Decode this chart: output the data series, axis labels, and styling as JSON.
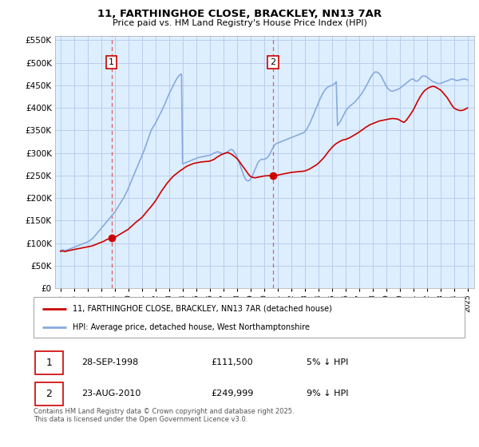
{
  "title": "11, FARTHINGHOE CLOSE, BRACKLEY, NN13 7AR",
  "subtitle": "Price paid vs. HM Land Registry's House Price Index (HPI)",
  "legend_label_red": "11, FARTHINGHOE CLOSE, BRACKLEY, NN13 7AR (detached house)",
  "legend_label_blue": "HPI: Average price, detached house, West Northamptonshire",
  "annotation1_date": "28-SEP-1998",
  "annotation1_price": "£111,500",
  "annotation1_hpi": "5% ↓ HPI",
  "annotation2_date": "23-AUG-2010",
  "annotation2_price": "£249,999",
  "annotation2_hpi": "9% ↓ HPI",
  "footer": "Contains HM Land Registry data © Crown copyright and database right 2025.\nThis data is licensed under the Open Government Licence v3.0.",
  "sale1_year": 1998.75,
  "sale1_value": 111500,
  "sale2_year": 2010.65,
  "sale2_value": 249999,
  "red_color": "#cc0000",
  "blue_color": "#88aadd",
  "dashed_color": "#dd4444",
  "chart_bg": "#ddeeff",
  "grid_color": "#bbccee",
  "ylim_min": 0,
  "ylim_max": 560000,
  "xlim_min": 1994.6,
  "xlim_max": 2025.5,
  "red_x": [
    1995.0,
    1995.08,
    1995.17,
    1995.25,
    1995.33,
    1995.42,
    1995.5,
    1995.58,
    1995.67,
    1995.75,
    1995.83,
    1995.92,
    1996.0,
    1996.08,
    1996.17,
    1996.25,
    1996.33,
    1996.42,
    1996.5,
    1996.58,
    1996.67,
    1996.75,
    1996.83,
    1996.92,
    1997.0,
    1997.08,
    1997.17,
    1997.25,
    1997.33,
    1997.42,
    1997.5,
    1997.58,
    1997.67,
    1997.75,
    1997.83,
    1997.92,
    1998.0,
    1998.08,
    1998.17,
    1998.25,
    1998.33,
    1998.42,
    1998.5,
    1998.58,
    1998.67,
    1998.75,
    1999.0,
    1999.17,
    1999.33,
    1999.5,
    1999.67,
    1999.83,
    2000.0,
    2000.17,
    2000.33,
    2000.5,
    2000.67,
    2000.83,
    2001.0,
    2001.17,
    2001.33,
    2001.5,
    2001.67,
    2001.83,
    2002.0,
    2002.17,
    2002.33,
    2002.5,
    2002.67,
    2002.83,
    2003.0,
    2003.17,
    2003.33,
    2003.5,
    2003.67,
    2003.83,
    2004.0,
    2004.17,
    2004.33,
    2004.5,
    2004.67,
    2004.83,
    2005.0,
    2005.17,
    2005.33,
    2005.5,
    2005.67,
    2005.83,
    2006.0,
    2006.17,
    2006.33,
    2006.5,
    2006.67,
    2006.83,
    2007.0,
    2007.17,
    2007.33,
    2007.5,
    2007.67,
    2007.83,
    2008.0,
    2008.17,
    2008.33,
    2008.5,
    2008.67,
    2008.83,
    2009.0,
    2009.17,
    2009.33,
    2009.5,
    2009.67,
    2009.83,
    2010.0,
    2010.17,
    2010.33,
    2010.5,
    2010.65,
    2011.0,
    2011.17,
    2011.33,
    2011.5,
    2011.67,
    2011.83,
    2012.0,
    2012.17,
    2012.33,
    2012.5,
    2012.67,
    2012.83,
    2013.0,
    2013.17,
    2013.33,
    2013.5,
    2013.67,
    2013.83,
    2014.0,
    2014.17,
    2014.33,
    2014.5,
    2014.67,
    2014.83,
    2015.0,
    2015.17,
    2015.33,
    2015.5,
    2015.67,
    2015.83,
    2016.0,
    2016.17,
    2016.33,
    2016.5,
    2016.67,
    2016.83,
    2017.0,
    2017.17,
    2017.33,
    2017.5,
    2017.67,
    2017.83,
    2018.0,
    2018.17,
    2018.33,
    2018.5,
    2018.67,
    2018.83,
    2019.0,
    2019.17,
    2019.33,
    2019.5,
    2019.67,
    2019.83,
    2020.0,
    2020.17,
    2020.33,
    2020.5,
    2020.67,
    2020.83,
    2021.0,
    2021.17,
    2021.33,
    2021.5,
    2021.67,
    2021.83,
    2022.0,
    2022.17,
    2022.33,
    2022.5,
    2022.67,
    2022.83,
    2023.0,
    2023.17,
    2023.33,
    2023.5,
    2023.67,
    2023.83,
    2024.0,
    2024.17,
    2024.33,
    2024.5,
    2024.67,
    2024.83,
    2025.0
  ],
  "red_y": [
    82000,
    82500,
    83000,
    82000,
    81500,
    82000,
    83000,
    83500,
    84000,
    84500,
    85000,
    85500,
    86000,
    86500,
    87000,
    87500,
    88000,
    88500,
    89000,
    89500,
    90000,
    90500,
    91000,
    91500,
    92000,
    92500,
    93000,
    93500,
    94000,
    95000,
    96000,
    97000,
    98000,
    99000,
    100000,
    101000,
    102000,
    103000,
    104000,
    105000,
    107000,
    108000,
    109000,
    110000,
    111000,
    111500,
    113000,
    116000,
    119000,
    122000,
    125000,
    128000,
    131000,
    136000,
    140000,
    145000,
    149000,
    153000,
    157000,
    163000,
    169000,
    175000,
    181000,
    187000,
    194000,
    202000,
    210000,
    218000,
    225000,
    232000,
    238000,
    244000,
    249000,
    253000,
    257000,
    261000,
    264000,
    268000,
    271000,
    273000,
    275000,
    277000,
    278000,
    279000,
    280000,
    280500,
    281000,
    281500,
    282000,
    284000,
    286000,
    290000,
    293000,
    296000,
    298000,
    300000,
    301000,
    299000,
    296000,
    292000,
    288000,
    282000,
    275000,
    268000,
    261000,
    254000,
    248000,
    246000,
    245000,
    246000,
    247000,
    248000,
    249000,
    249500,
    249800,
    249900,
    249999,
    251000,
    252000,
    253000,
    254000,
    255000,
    256000,
    257000,
    257500,
    258000,
    258500,
    259000,
    259500,
    260000,
    262000,
    264000,
    267000,
    270000,
    273000,
    277000,
    282000,
    287000,
    293000,
    300000,
    306000,
    312000,
    317000,
    321000,
    324000,
    327000,
    329000,
    330000,
    332000,
    334000,
    337000,
    340000,
    343000,
    346000,
    350000,
    353000,
    357000,
    360000,
    363000,
    365000,
    367000,
    369000,
    371000,
    372000,
    373000,
    374000,
    375000,
    376000,
    376500,
    376000,
    375500,
    373000,
    370000,
    368000,
    373000,
    380000,
    387000,
    395000,
    405000,
    415000,
    424000,
    432000,
    438000,
    442000,
    445000,
    447000,
    448000,
    446000,
    443000,
    440000,
    435000,
    429000,
    423000,
    415000,
    407000,
    400000,
    397000,
    395000,
    394000,
    395000,
    397000,
    400000,
    403000,
    406000,
    408000,
    410000,
    411000,
    412000
  ],
  "blue_x": [
    1995.0,
    1995.08,
    1995.17,
    1995.25,
    1995.33,
    1995.42,
    1995.5,
    1995.58,
    1995.67,
    1995.75,
    1995.83,
    1995.92,
    1996.0,
    1996.08,
    1996.17,
    1996.25,
    1996.33,
    1996.42,
    1996.5,
    1996.58,
    1996.67,
    1996.75,
    1996.83,
    1996.92,
    1997.0,
    1997.08,
    1997.17,
    1997.25,
    1997.33,
    1997.42,
    1997.5,
    1997.58,
    1997.67,
    1997.75,
    1997.83,
    1997.92,
    1998.0,
    1998.08,
    1998.17,
    1998.25,
    1998.33,
    1998.42,
    1998.5,
    1998.58,
    1998.67,
    1998.75,
    1998.83,
    1998.92,
    1999.0,
    1999.08,
    1999.17,
    1999.25,
    1999.33,
    1999.42,
    1999.5,
    1999.58,
    1999.67,
    1999.75,
    1999.83,
    1999.92,
    2000.0,
    2000.08,
    2000.17,
    2000.25,
    2000.33,
    2000.42,
    2000.5,
    2000.58,
    2000.67,
    2000.75,
    2000.83,
    2000.92,
    2001.0,
    2001.08,
    2001.17,
    2001.25,
    2001.33,
    2001.42,
    2001.5,
    2001.58,
    2001.67,
    2001.75,
    2001.83,
    2001.92,
    2002.0,
    2002.08,
    2002.17,
    2002.25,
    2002.33,
    2002.42,
    2002.5,
    2002.58,
    2002.67,
    2002.75,
    2002.83,
    2002.92,
    2003.0,
    2003.08,
    2003.17,
    2003.25,
    2003.33,
    2003.42,
    2003.5,
    2003.58,
    2003.67,
    2003.75,
    2003.83,
    2003.92,
    2004.0,
    2004.08,
    2004.17,
    2004.25,
    2004.33,
    2004.42,
    2004.5,
    2004.58,
    2004.67,
    2004.75,
    2004.83,
    2004.92,
    2005.0,
    2005.08,
    2005.17,
    2005.25,
    2005.33,
    2005.42,
    2005.5,
    2005.58,
    2005.67,
    2005.75,
    2005.83,
    2005.92,
    2006.0,
    2006.08,
    2006.17,
    2006.25,
    2006.33,
    2006.42,
    2006.5,
    2006.58,
    2006.67,
    2006.75,
    2006.83,
    2006.92,
    2007.0,
    2007.08,
    2007.17,
    2007.25,
    2007.33,
    2007.42,
    2007.5,
    2007.58,
    2007.67,
    2007.75,
    2007.83,
    2007.92,
    2008.0,
    2008.08,
    2008.17,
    2008.25,
    2008.33,
    2008.42,
    2008.5,
    2008.58,
    2008.67,
    2008.75,
    2008.83,
    2008.92,
    2009.0,
    2009.08,
    2009.17,
    2009.25,
    2009.33,
    2009.42,
    2009.5,
    2009.58,
    2009.67,
    2009.75,
    2009.83,
    2009.92,
    2010.0,
    2010.08,
    2010.17,
    2010.25,
    2010.33,
    2010.42,
    2010.5,
    2010.58,
    2010.67,
    2010.75,
    2010.83,
    2010.92,
    2011.0,
    2011.08,
    2011.17,
    2011.25,
    2011.33,
    2011.42,
    2011.5,
    2011.58,
    2011.67,
    2011.75,
    2011.83,
    2011.92,
    2012.0,
    2012.08,
    2012.17,
    2012.25,
    2012.33,
    2012.42,
    2012.5,
    2012.58,
    2012.67,
    2012.75,
    2012.83,
    2012.92,
    2013.0,
    2013.08,
    2013.17,
    2013.25,
    2013.33,
    2013.42,
    2013.5,
    2013.58,
    2013.67,
    2013.75,
    2013.83,
    2013.92,
    2014.0,
    2014.08,
    2014.17,
    2014.25,
    2014.33,
    2014.42,
    2014.5,
    2014.58,
    2014.67,
    2014.75,
    2014.83,
    2014.92,
    2015.0,
    2015.08,
    2015.17,
    2015.25,
    2015.33,
    2015.42,
    2015.5,
    2015.58,
    2015.67,
    2015.75,
    2015.83,
    2015.92,
    2016.0,
    2016.08,
    2016.17,
    2016.25,
    2016.33,
    2016.42,
    2016.5,
    2016.58,
    2016.67,
    2016.75,
    2016.83,
    2016.92,
    2017.0,
    2017.08,
    2017.17,
    2017.25,
    2017.33,
    2017.42,
    2017.5,
    2017.58,
    2017.67,
    2017.75,
    2017.83,
    2017.92,
    2018.0,
    2018.08,
    2018.17,
    2018.25,
    2018.33,
    2018.42,
    2018.5,
    2018.58,
    2018.67,
    2018.75,
    2018.83,
    2018.92,
    2019.0,
    2019.08,
    2019.17,
    2019.25,
    2019.33,
    2019.42,
    2019.5,
    2019.58,
    2019.67,
    2019.75,
    2019.83,
    2019.92,
    2020.0,
    2020.08,
    2020.17,
    2020.25,
    2020.33,
    2020.42,
    2020.5,
    2020.58,
    2020.67,
    2020.75,
    2020.83,
    2020.92,
    2021.0,
    2021.08,
    2021.17,
    2021.25,
    2021.33,
    2021.42,
    2021.5,
    2021.58,
    2021.67,
    2021.75,
    2021.83,
    2021.92,
    2022.0,
    2022.08,
    2022.17,
    2022.25,
    2022.33,
    2022.42,
    2022.5,
    2022.58,
    2022.67,
    2022.75,
    2022.83,
    2022.92,
    2023.0,
    2023.08,
    2023.17,
    2023.25,
    2023.33,
    2023.42,
    2023.5,
    2023.58,
    2023.67,
    2023.75,
    2023.83,
    2023.92,
    2024.0,
    2024.08,
    2024.17,
    2024.25,
    2024.33,
    2024.42,
    2024.5,
    2024.58,
    2024.67,
    2024.75,
    2024.83,
    2024.92,
    2025.0
  ],
  "blue_y": [
    84000,
    84500,
    85000,
    84500,
    84000,
    84500,
    85000,
    86000,
    87000,
    88000,
    89000,
    90000,
    91000,
    92000,
    93000,
    94000,
    95000,
    96000,
    97000,
    98000,
    99000,
    100000,
    101000,
    102000,
    103000,
    104000,
    106000,
    108000,
    110000,
    112000,
    115000,
    118000,
    121000,
    124000,
    127000,
    130000,
    133000,
    136000,
    139000,
    142000,
    145000,
    148000,
    151000,
    154000,
    157000,
    160000,
    163000,
    166000,
    169000,
    173000,
    177000,
    181000,
    185000,
    189000,
    193000,
    197000,
    201000,
    206000,
    211000,
    216000,
    222000,
    228000,
    234000,
    240000,
    246000,
    252000,
    258000,
    264000,
    270000,
    276000,
    282000,
    288000,
    294000,
    300000,
    306000,
    313000,
    320000,
    328000,
    335000,
    342000,
    349000,
    354000,
    358000,
    362000,
    366000,
    371000,
    376000,
    381000,
    386000,
    391000,
    396000,
    401000,
    407000,
    413000,
    419000,
    425000,
    431000,
    436000,
    441000,
    446000,
    451000,
    456000,
    461000,
    465000,
    469000,
    472000,
    474000,
    475000,
    276000,
    277000,
    278000,
    279000,
    280000,
    281000,
    282000,
    283000,
    284000,
    285000,
    286000,
    287000,
    288000,
    289000,
    290000,
    290500,
    291000,
    291500,
    292000,
    292500,
    293000,
    293500,
    294000,
    294500,
    295000,
    296000,
    297000,
    299000,
    300000,
    301000,
    302000,
    303000,
    302000,
    301000,
    300000,
    299000,
    298000,
    299000,
    300000,
    301000,
    303000,
    305000,
    307000,
    308000,
    307000,
    305000,
    301000,
    297000,
    292000,
    286000,
    279000,
    272000,
    265000,
    258000,
    251000,
    245000,
    241000,
    239000,
    238000,
    239000,
    242000,
    246000,
    251000,
    257000,
    263000,
    269000,
    275000,
    280000,
    283000,
    285000,
    286000,
    286000,
    286000,
    287000,
    288000,
    290000,
    293000,
    297000,
    302000,
    307000,
    312000,
    316000,
    319000,
    321000,
    322000,
    323000,
    324000,
    325000,
    326000,
    327000,
    328000,
    329000,
    330000,
    331000,
    332000,
    333000,
    334000,
    335000,
    336000,
    337000,
    338000,
    339000,
    340000,
    341000,
    342000,
    343000,
    344000,
    345000,
    347000,
    350000,
    354000,
    358000,
    363000,
    368000,
    374000,
    380000,
    386000,
    392000,
    398000,
    404000,
    410000,
    416000,
    422000,
    427000,
    432000,
    436000,
    440000,
    443000,
    445000,
    447000,
    448000,
    449000,
    450000,
    451000,
    453000,
    455000,
    458000,
    361000,
    364000,
    368000,
    372000,
    377000,
    382000,
    387000,
    392000,
    396000,
    399000,
    402000,
    404000,
    406000,
    408000,
    410000,
    412000,
    415000,
    418000,
    421000,
    424000,
    427000,
    430000,
    434000,
    438000,
    442000,
    447000,
    451000,
    456000,
    461000,
    466000,
    470000,
    474000,
    477000,
    479000,
    480000,
    479000,
    478000,
    476000,
    473000,
    469000,
    464000,
    459000,
    454000,
    449000,
    445000,
    442000,
    440000,
    438000,
    437000,
    437000,
    438000,
    439000,
    440000,
    441000,
    442000,
    443000,
    445000,
    447000,
    449000,
    451000,
    453000,
    455000,
    457000,
    459000,
    461000,
    463000,
    464000,
    464000,
    462000,
    460000,
    459000,
    460000,
    462000,
    465000,
    468000,
    470000,
    471000,
    471000,
    470000,
    469000,
    467000,
    465000,
    463000,
    461000,
    459000,
    458000,
    457000,
    456000,
    455000,
    454000,
    454000,
    454000,
    455000,
    456000,
    457000,
    458000,
    459000,
    460000,
    461000,
    462000,
    463000,
    464000,
    464000,
    463000,
    462000,
    461000,
    461000,
    461000,
    462000,
    463000,
    463000,
    464000,
    464000,
    464000,
    463000,
    462000,
    461000,
    460000,
    459000,
    458000,
    458000,
    458000,
    458000,
    458000,
    458000,
    458000,
    458000,
    458000
  ]
}
